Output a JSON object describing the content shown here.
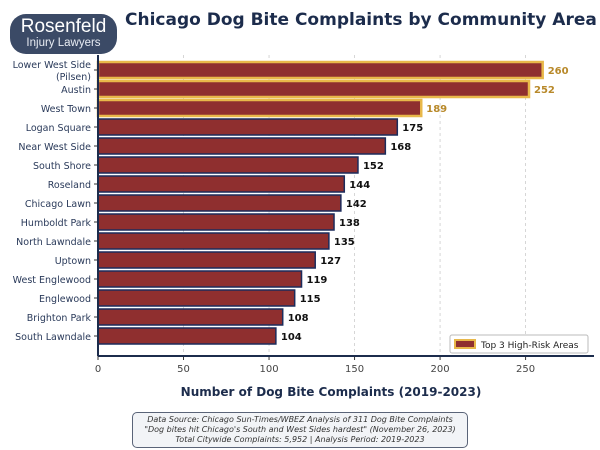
{
  "logo": {
    "line1": "Rosenfeld",
    "line2": "Injury Lawyers"
  },
  "chart_data": {
    "type": "bar",
    "orientation": "horizontal",
    "title": "Chicago Dog Bite Complaints by Community Area",
    "xlabel": "Number of Dog Bite Complaints (2019-2023)",
    "ylabel": "",
    "xlim": [
      0,
      290
    ],
    "xticks": [
      0,
      50,
      100,
      150,
      200,
      250
    ],
    "grid": "vertical dashed",
    "categories": [
      "Lower West Side\n(Pilsen)",
      "Austin",
      "West Town",
      "Logan Square",
      "Near West Side",
      "South Shore",
      "Roseland",
      "Chicago Lawn",
      "Humboldt Park",
      "North Lawndale",
      "Uptown",
      "West Englewood",
      "Englewood",
      "Brighton Park",
      "South Lawndale"
    ],
    "values": [
      260,
      252,
      189,
      175,
      168,
      152,
      144,
      142,
      138,
      135,
      127,
      119,
      115,
      108,
      104
    ],
    "highlighted_top": 3,
    "legend": {
      "entries": [
        "Top 3 High-Risk Areas"
      ],
      "placement": "bottom-right"
    },
    "colors": {
      "bar": "#8f2f2f",
      "bar_edge": "#1c2c5c",
      "highlight_edge": "#e8b84a",
      "highlight_label": "#b8892a",
      "label": "#111111"
    }
  },
  "source_box": {
    "line1": "Data Source: Chicago Sun-Times/WBEZ Analysis of 311 Dog Bite Complaints",
    "line2": "\"Dog bites hit Chicago's South and West Sides hardest\" (November 26, 2023)",
    "line3": "Total Citywide Complaints: 5,952 | Analysis Period: 2019-2023"
  }
}
